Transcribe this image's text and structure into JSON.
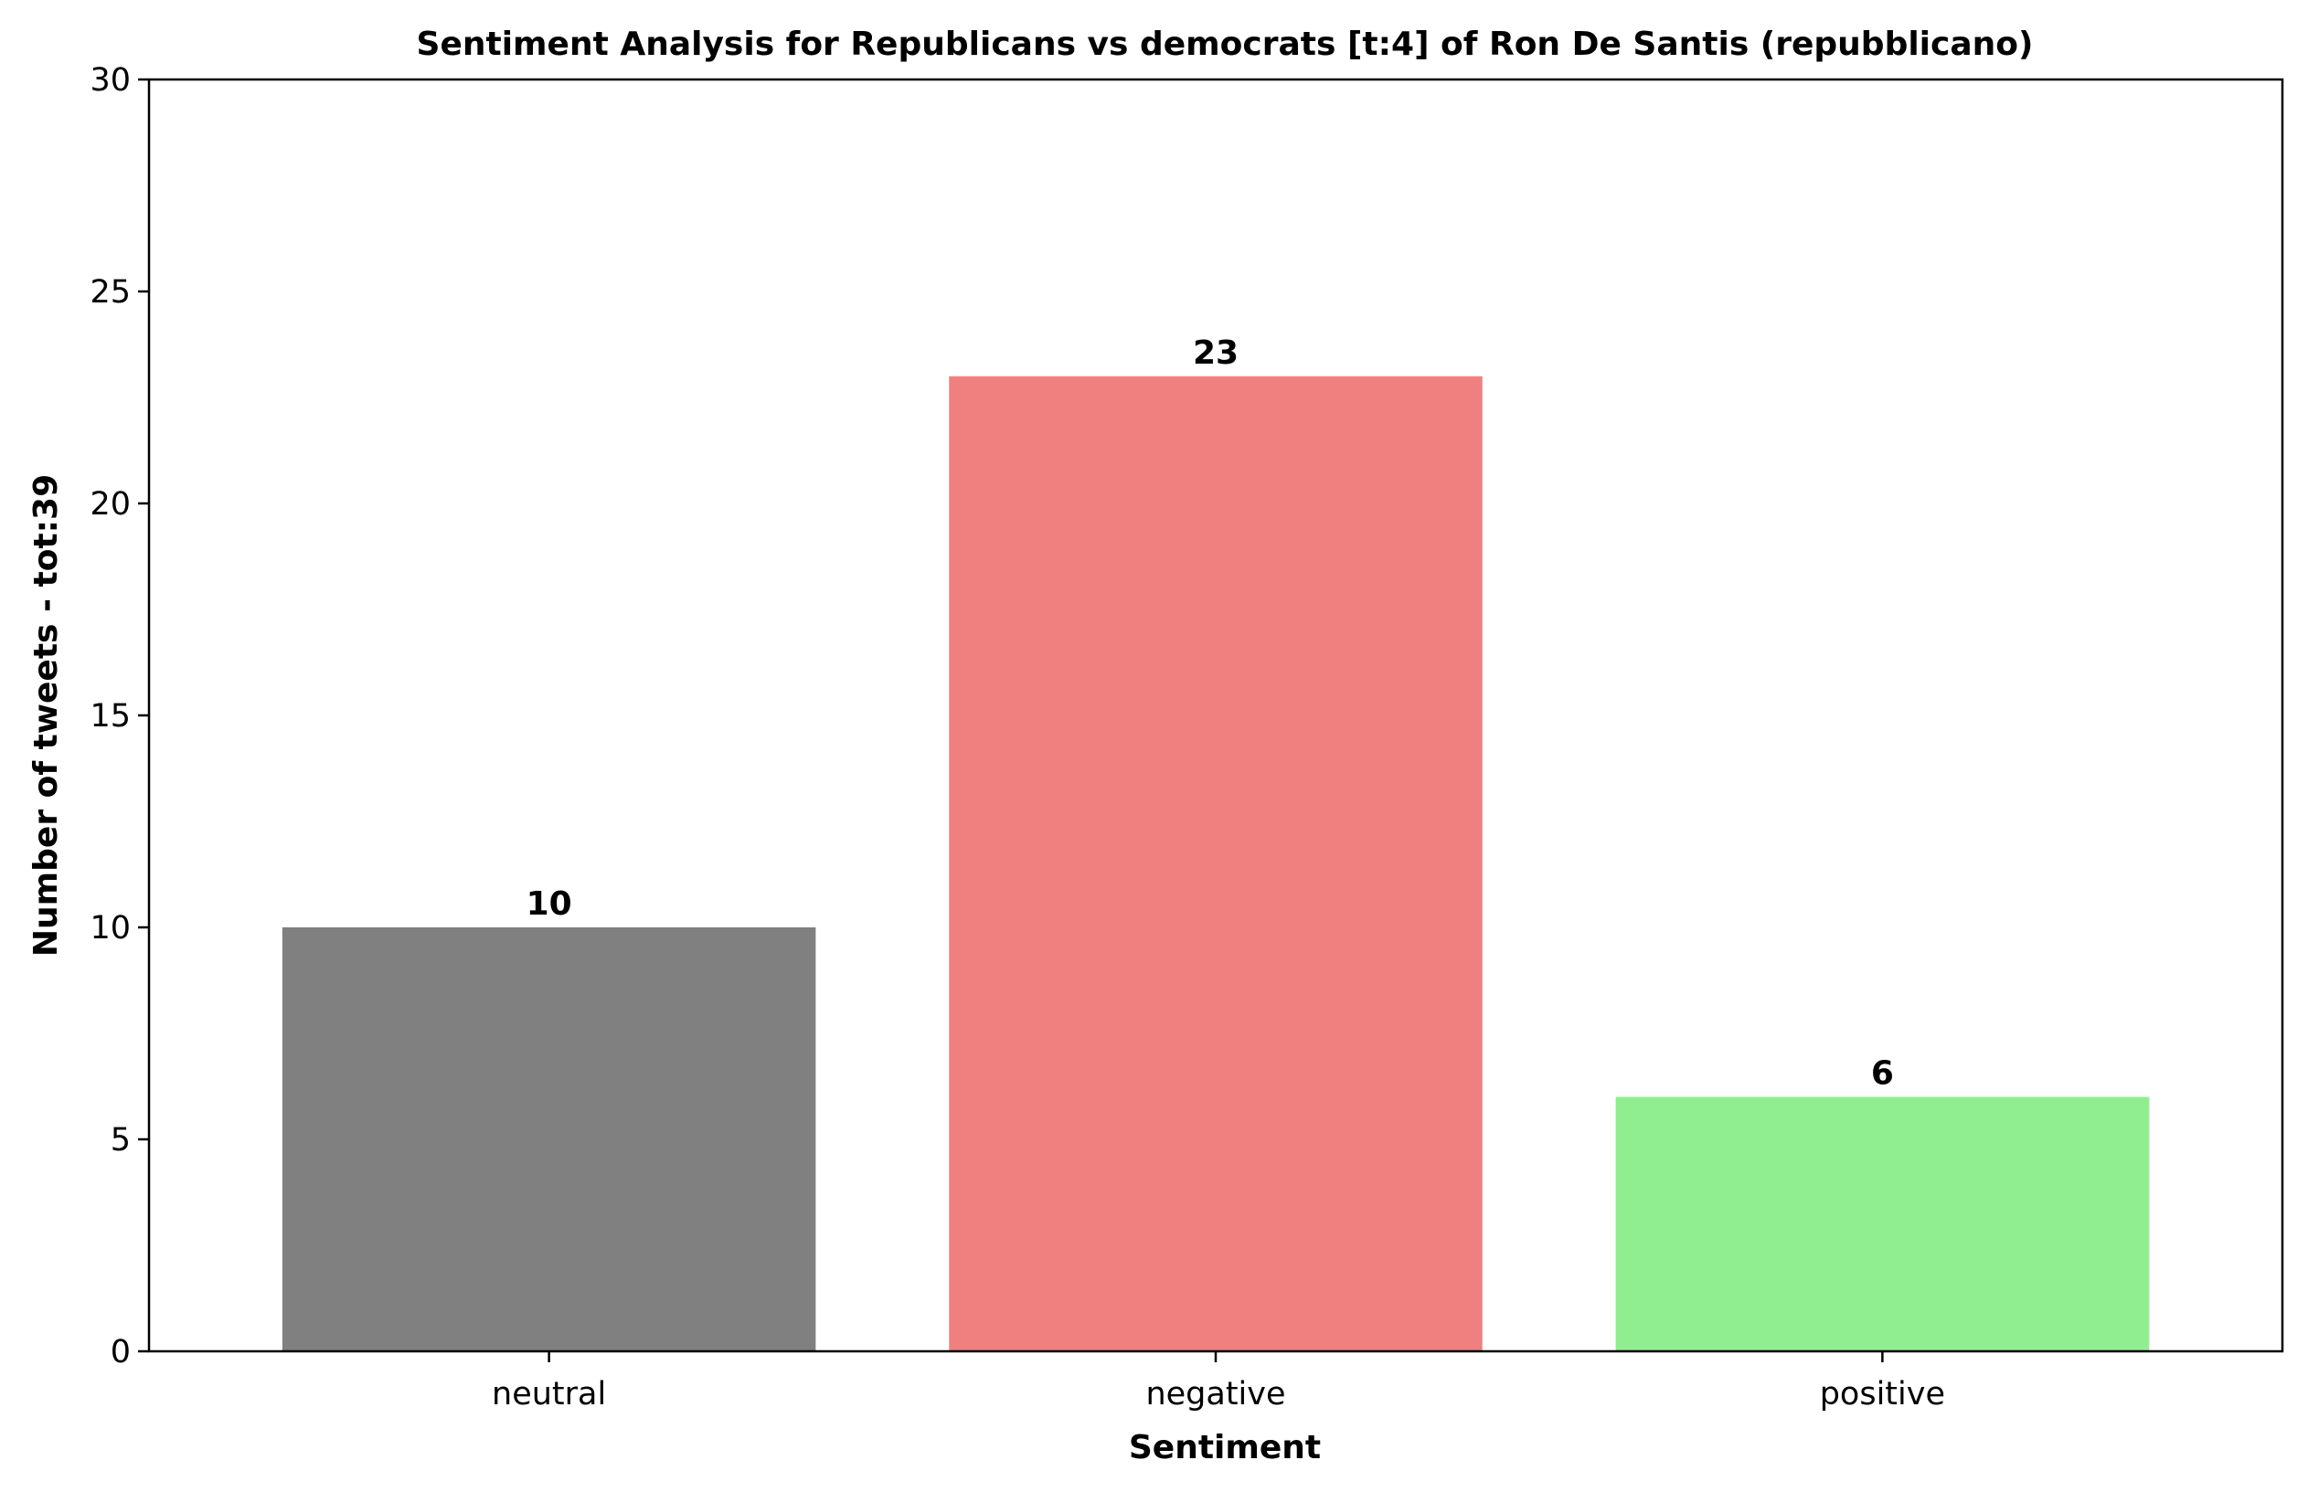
{
  "chart_data": {
    "type": "bar",
    "title": "Sentiment Analysis for Republicans vs democrats [t:4] of Ron De Santis (repubblicano)",
    "xlabel": "Sentiment",
    "ylabel": "Number of tweets - tot:39",
    "categories": [
      "neutral",
      "negative",
      "positive"
    ],
    "values": [
      10,
      23,
      6
    ],
    "value_labels": [
      "10",
      "23",
      "6"
    ],
    "colors": [
      "#808080",
      "#f08080",
      "#90ee90"
    ],
    "ylim": [
      0,
      30
    ],
    "yticks": [
      0,
      5,
      10,
      15,
      20,
      25,
      30
    ],
    "ytick_labels": [
      "0",
      "5",
      "10",
      "15",
      "20",
      "25",
      "30"
    ],
    "grid": false,
    "legend": "none"
  }
}
